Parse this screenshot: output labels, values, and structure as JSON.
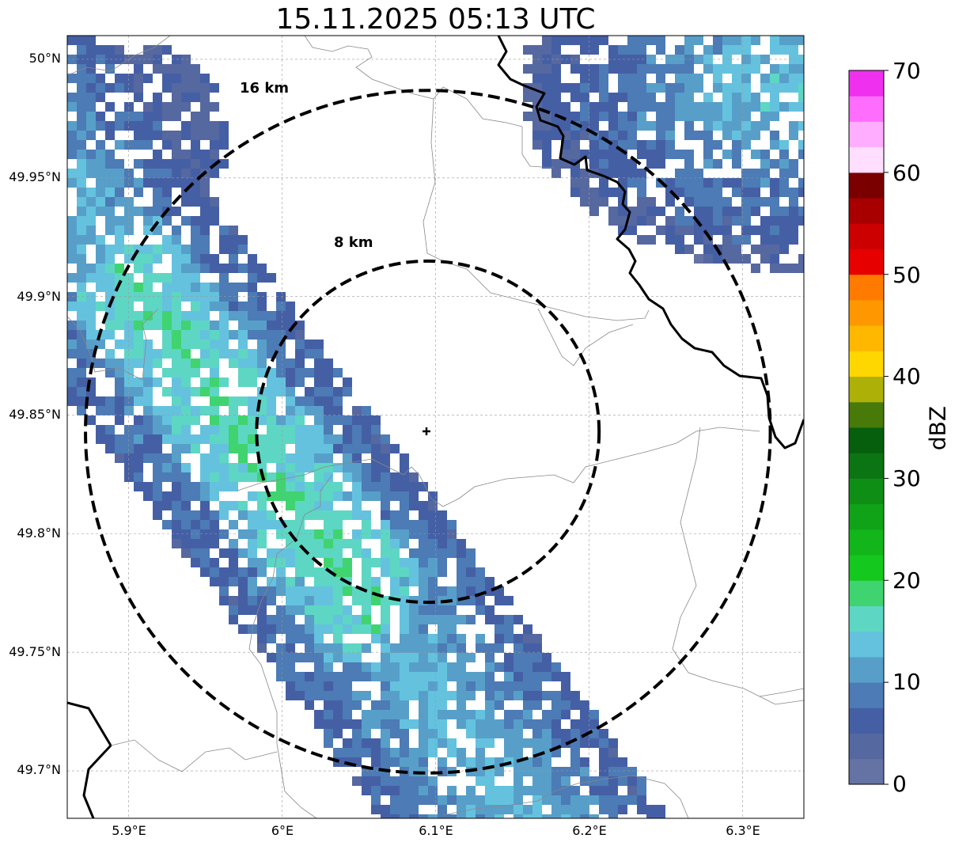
{
  "title": "15.11.2025 05:13 UTC",
  "map": {
    "lat_range": [
      49.68,
      50.01
    ],
    "lon_range": [
      5.86,
      6.34
    ],
    "radar_site": {
      "lat": 49.843,
      "lon": 6.095
    },
    "range_rings": [
      {
        "radius_km": 8,
        "label": "8 km"
      },
      {
        "radius_km": 16,
        "label": "16 km"
      }
    ],
    "y_ticks": [
      {
        "value": 50.0,
        "label": "50°N"
      },
      {
        "value": 49.95,
        "label": "49.95°N"
      },
      {
        "value": 49.9,
        "label": "49.9°N"
      },
      {
        "value": 49.85,
        "label": "49.85°N"
      },
      {
        "value": 49.8,
        "label": "49.8°N"
      },
      {
        "value": 49.75,
        "label": "49.75°N"
      },
      {
        "value": 49.7,
        "label": "49.7°N"
      }
    ],
    "x_ticks": [
      {
        "value": 5.9,
        "label": "5.9°E"
      },
      {
        "value": 6.0,
        "label": "6°E"
      },
      {
        "value": 6.1,
        "label": "6.1°E"
      },
      {
        "value": 6.2,
        "label": "6.2°E"
      },
      {
        "value": 6.3,
        "label": "6.3°E"
      }
    ]
  },
  "colorbar": {
    "label": "dBZ",
    "min": 0,
    "max": 70,
    "step": 2.5,
    "ticks": [
      {
        "value": 70,
        "label": "70"
      },
      {
        "value": 60,
        "label": "60"
      },
      {
        "value": 50,
        "label": "50"
      },
      {
        "value": 40,
        "label": "40"
      },
      {
        "value": 30,
        "label": "30"
      },
      {
        "value": 20,
        "label": "20"
      },
      {
        "value": 10,
        "label": "10"
      },
      {
        "value": 0,
        "label": "0"
      }
    ],
    "colors": [
      "#6473a4",
      "#5668a0",
      "#455fa5",
      "#4c7bb5",
      "#579fc9",
      "#64c2de",
      "#5ed6c4",
      "#3fd46f",
      "#14c81e",
      "#12b51a",
      "#10a318",
      "#0f8e16",
      "#0c7513",
      "#065f0c",
      "#477a09",
      "#adb107",
      "#ffd700",
      "#ffb700",
      "#ff9800",
      "#ff7b00",
      "#e60000",
      "#cc0000",
      "#a80000",
      "#7a0000",
      "#ffdeff",
      "#ffaeff",
      "#ff6dff",
      "#f030ef"
    ]
  },
  "legend": {
    "cbar_label": "dBZ"
  }
}
